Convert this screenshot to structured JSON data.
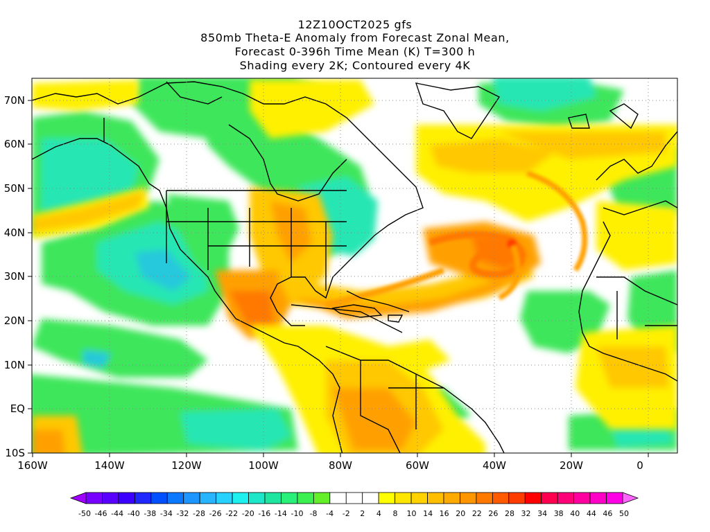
{
  "title": {
    "line1": "12Z10OCT2025 gfs",
    "line2": "850mb Theta-E Anomaly from Forecast Zonal Mean,",
    "line3": "Forecast 0-396h Time Mean (K) T=300 h",
    "line4": "Shading every 2K; Contoured every 4K"
  },
  "latitude_labels": [
    "70N",
    "60N",
    "50N",
    "40N",
    "30N",
    "20N",
    "10N",
    "EQ",
    "10S"
  ],
  "longitude_labels": [
    "160W",
    "140W",
    "120W",
    "100W",
    "80W",
    "60W",
    "40W",
    "20W",
    "0"
  ],
  "colorbar": {
    "labels": [
      "-50",
      "-46",
      "-44",
      "-40",
      "-38",
      "-34",
      "-32",
      "-28",
      "-26",
      "-22",
      "-20",
      "-16",
      "-14",
      "-10",
      "-8",
      "-4",
      "-2",
      "2",
      "4",
      "8",
      "10",
      "14",
      "16",
      "20",
      "22",
      "26",
      "28",
      "32",
      "34",
      "38",
      "40",
      "44",
      "46",
      "50"
    ],
    "colors": [
      "#a000ff",
      "#7800ff",
      "#5a00ff",
      "#3c00ff",
      "#1e28ff",
      "#0050ff",
      "#0a78ff",
      "#1e96ff",
      "#28b4ff",
      "#28d2ff",
      "#1ef0f0",
      "#1ee6c8",
      "#1ee6a0",
      "#28f078",
      "#3cf050",
      "#64f028",
      "#ffffff",
      "#ffffff",
      "#ffffff",
      "#ffff00",
      "#ffe600",
      "#ffd200",
      "#ffbe00",
      "#ffaa00",
      "#ff9600",
      "#ff7800",
      "#ff5a00",
      "#ff3c00",
      "#ff0000",
      "#ff0050",
      "#ff0078",
      "#ff00a0",
      "#ff00c8",
      "#ff00e6",
      "#ff64ff"
    ]
  },
  "colors": {
    "green": "#3ce65a",
    "cyan_green": "#28e6b4",
    "yellow": "#fff000",
    "light_orange": "#ffc800",
    "orange": "#ffa000",
    "deep_orange": "#ff7800",
    "red": "#ff3c00"
  }
}
